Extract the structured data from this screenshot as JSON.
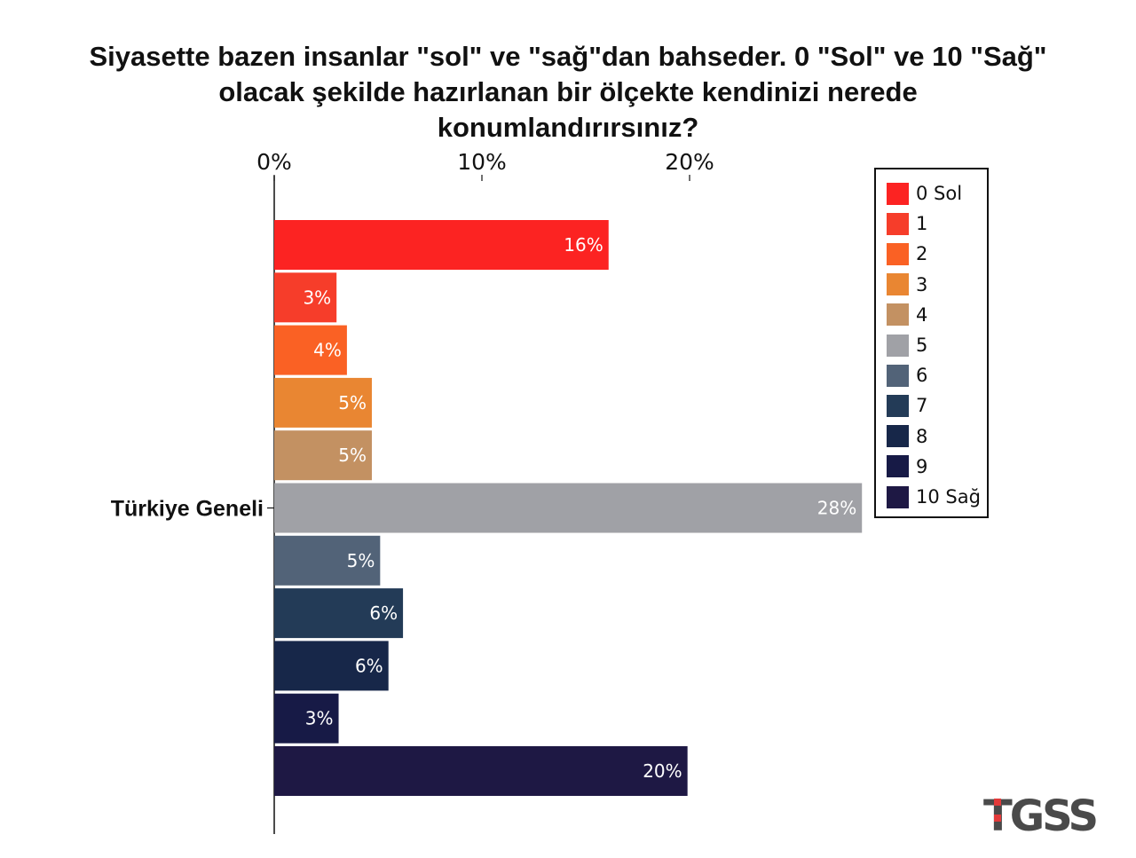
{
  "title_lines": [
    "Siyasette bazen insanlar \"sol\" ve \"sağ\"dan bahseder. 0 \"Sol\" ve 10 \"Sağ\"",
    "olacak şekilde hazırlanan bir ölçekte kendinizi nerede",
    "konumlandırırsınız?"
  ],
  "chart_data": {
    "type": "bar",
    "orientation": "horizontal",
    "title": "Siyasette bazen insanlar \"sol\" ve \"sağ\"dan bahseder. 0 \"Sol\" ve 10 \"Sağ\" olacak şekilde hazırlanan bir ölçekte kendinizi nerede konumlandırırsınız?",
    "group_label": "Türkiye Geneli",
    "x_ticks": [
      "0%",
      "10%",
      "20%"
    ],
    "xlim": [
      0,
      28.5
    ],
    "grid": false,
    "legend_position": "right",
    "series": [
      {
        "name": "0 Sol",
        "value": 16.1,
        "label": "16%",
        "color": "#fc2322"
      },
      {
        "name": "1",
        "value": 3.0,
        "label": "3%",
        "color": "#f63d2a"
      },
      {
        "name": "2",
        "value": 3.5,
        "label": "4%",
        "color": "#fa6124"
      },
      {
        "name": "3",
        "value": 4.7,
        "label": "5%",
        "color": "#e98632"
      },
      {
        "name": "4",
        "value": 4.7,
        "label": "5%",
        "color": "#c39162"
      },
      {
        "name": "5",
        "value": 28.3,
        "label": "28%",
        "color": "#a0a1a6"
      },
      {
        "name": "6",
        "value": 5.1,
        "label": "5%",
        "color": "#526378"
      },
      {
        "name": "7",
        "value": 6.2,
        "label": "6%",
        "color": "#233b57"
      },
      {
        "name": "8",
        "value": 5.5,
        "label": "6%",
        "color": "#172749"
      },
      {
        "name": "9",
        "value": 3.1,
        "label": "3%",
        "color": "#171a46"
      },
      {
        "name": "10 Sağ",
        "value": 19.9,
        "label": "20%",
        "color": "#1e1844"
      }
    ]
  },
  "logo": {
    "text": "TGSS",
    "accent": "#e23a3a",
    "color": "#4a4a4a"
  }
}
